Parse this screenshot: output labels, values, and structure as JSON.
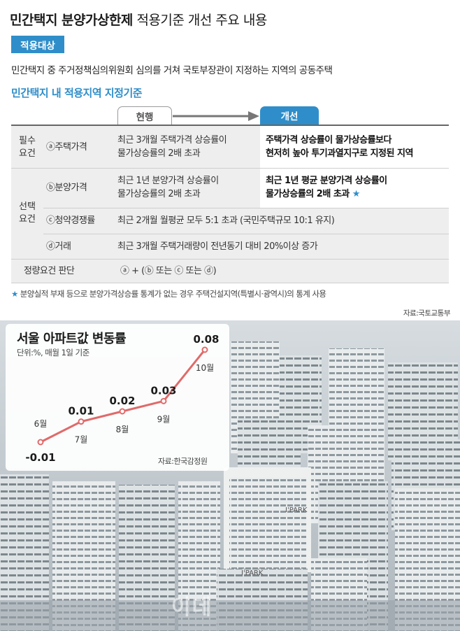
{
  "header": {
    "title_bold": "민간택지 분양가상한제",
    "title_rest": " 적용기준 개선 주요 내용"
  },
  "target": {
    "badge": "적용대상",
    "text": "민간택지 중 주거정책심의위원회 심의를 거쳐 국토부장관이 지정하는 지역의 공동주택"
  },
  "criteria": {
    "heading": "민간택지 내 적용지역 지정기준",
    "tab_current": "현행",
    "tab_new": "개선",
    "required_group": [
      "필수",
      "요건"
    ],
    "optional_group": [
      "선택",
      "요건"
    ],
    "rows": [
      {
        "item": "ⓐ주택가격",
        "current": [
          "최근 3개월 주택가격 상승률이",
          "물가상승률의 2배 초과"
        ],
        "new": [
          "주택가격 상승률이 물가상승률보다",
          "현저히 높아 투기과열지구로 지정된 지역"
        ]
      },
      {
        "item": "ⓑ분양가격",
        "current": [
          "최근 1년 분양가격 상승률이",
          "물가상승률의 2배 초과"
        ],
        "new": [
          "최근 1년 평균 분양가격 상승률이",
          "물가상승률의 2배 초과 "
        ],
        "new_star": "★"
      },
      {
        "item": "ⓒ청약경쟁률",
        "current": [
          "최근 2개월 월평균 모두 5:1 초과 (국민주택규모 10:1 유지)"
        ]
      },
      {
        "item": "ⓓ거래",
        "current": [
          "최근 3개월 주택거래량이 전년동기 대비 20%이상 증가"
        ]
      }
    ],
    "quant": {
      "label": "정량요건 판단",
      "formula": "ⓐ + (ⓑ 또는 ⓒ 또는 ⓓ)"
    }
  },
  "footnote": {
    "star": "★",
    "text": " 분양실적 부재 등으로 분양가격상승률 통계가 없는 경우 주택건설지역(특별시·광역시)의 통계 사용"
  },
  "source_top": "자료:국토교통부",
  "chart_data": {
    "type": "line",
    "title": "서울 아파트값 변동률",
    "unit": "단위:%, 매월 1일 기준",
    "categories": [
      "6월",
      "7월",
      "8월",
      "9월",
      "10월"
    ],
    "values": [
      -0.01,
      0.01,
      0.02,
      0.03,
      0.08
    ],
    "value_labels": [
      "-0.01",
      "0.01",
      "0.02",
      "0.03",
      "0.08"
    ],
    "source": "자료:한국감정원",
    "line_color": "#e06a6a"
  },
  "photo": {
    "watermark": "이데",
    "sign1": "I'PARK",
    "sign2": "I'PARK"
  },
  "colors": {
    "accent": "#2f8ec9",
    "line": "#e06a6a"
  }
}
